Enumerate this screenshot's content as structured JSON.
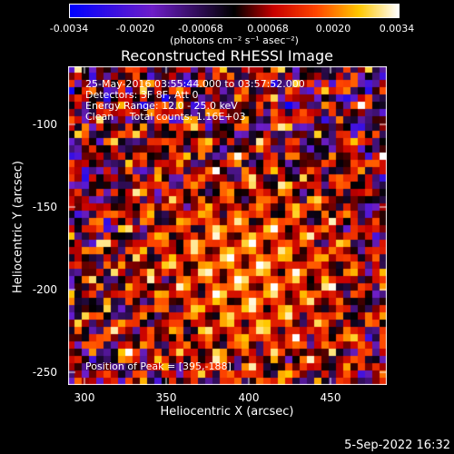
{
  "colorbar": {
    "ticks": [
      "-0.0034",
      "-0.0020",
      "-0.00068",
      "0.00068",
      "0.0020",
      "0.0034"
    ],
    "units": "(photons cm⁻² s⁻¹ asec⁻²)"
  },
  "title": "Reconstructed RHESSI Image",
  "info": {
    "line1": "25-May-2016 03:55:44.000 to 03:57:52.000",
    "line2": "Detectors: 3F 8F, Att 0",
    "line3": "Energy Range: 12.0 - 25.0 keV",
    "line4": "Clean     Total counts: 1.16E+03",
    "peak": "Position of Peak = [395,-188]"
  },
  "axes": {
    "xlabel": "Heliocentric X (arcsec)",
    "ylabel": "Heliocentric Y (arcsec)",
    "xticks": [
      "300",
      "350",
      "400",
      "450"
    ],
    "yticks": [
      "-100",
      "-150",
      "-200",
      "-250"
    ]
  },
  "date": "5-Sep-2022 16:32"
}
